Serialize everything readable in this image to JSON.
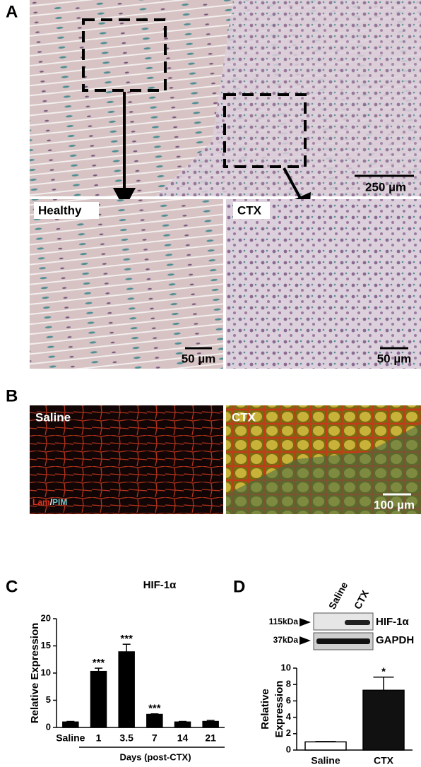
{
  "panels": {
    "a": "A",
    "b": "B",
    "c": "C",
    "d": "D"
  },
  "panel_a": {
    "healthy": "Healthy",
    "ctx": "CTX",
    "scale_main": "250 µm",
    "scale_left": "50 µm",
    "scale_right": "50 µm"
  },
  "panel_b": {
    "saline": "Saline",
    "ctx": "CTX",
    "stain_lam": "Lam",
    "stain_sep": "/",
    "stain_pim": "PIM",
    "scale": "100 µm"
  },
  "panel_d_blot": {
    "lanes": [
      "Saline",
      "CTX"
    ],
    "markers": [
      "115kDa",
      "37kDa"
    ],
    "proteins": [
      "HIF-1α",
      "GAPDH"
    ]
  },
  "chart_data": [
    {
      "type": "bar",
      "title": "HIF-1α",
      "ylabel": [
        "Relative Expression"
      ],
      "xlabel": "Days (post-CTX)",
      "categories": [
        "Saline",
        "1",
        "3.5",
        "7",
        "14",
        "21"
      ],
      "values": [
        1,
        10.3,
        13.9,
        2.4,
        1,
        1.1
      ],
      "errors": [
        0.1,
        0.6,
        1.4,
        0.1,
        0.1,
        0.2
      ],
      "significance": [
        null,
        "***",
        "***",
        "***",
        null,
        null
      ],
      "colors": [
        "#000000",
        "#000000",
        "#000000",
        "#000000",
        "#000000",
        "#000000"
      ],
      "ylim": [
        0,
        20
      ],
      "yticks": [
        0,
        5,
        10,
        15,
        20
      ]
    },
    {
      "type": "bar",
      "ylabel": [
        "Relative",
        "Expression"
      ],
      "categories": [
        "Saline",
        "CTX"
      ],
      "values": [
        1,
        7.3
      ],
      "errors": [
        0.05,
        1.6
      ],
      "significance": [
        null,
        "*"
      ],
      "colors": [
        "#ffffff",
        "#111111"
      ],
      "ylim": [
        0,
        10
      ],
      "yticks": [
        0,
        2,
        4,
        6,
        8,
        10
      ]
    }
  ]
}
